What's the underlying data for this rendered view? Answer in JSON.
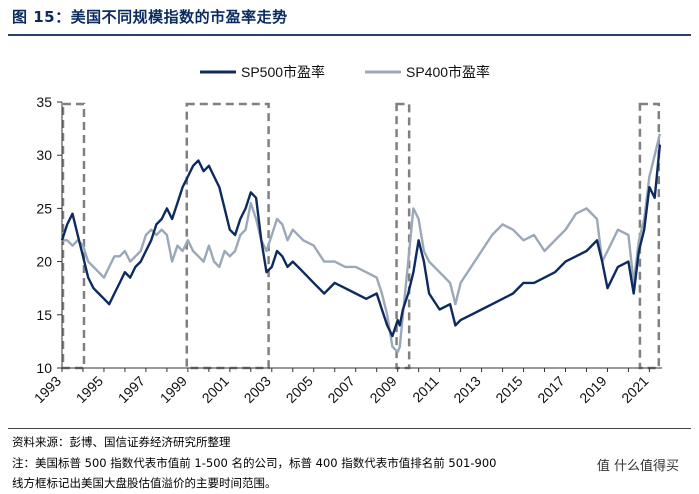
{
  "header": {
    "title": "图 15：美国不同规模指数的市盈率走势"
  },
  "footer": {
    "source": "资料来源：彭博、国信证券经济研究所整理",
    "note1": "注：美国标普 500 指数代表市值前 1-500 名的公司，标普 400 指数代表市值排名前 501-900",
    "note2": "线方框标记出美国大盘股估值溢价的主要时间范围。",
    "watermark": "值 什么值得买"
  },
  "colors": {
    "sp500": "#0d2b5e",
    "sp400": "#9aa8b8",
    "box": "#808080"
  },
  "chart_data": {
    "type": "line",
    "title": "",
    "xlabel": "",
    "ylabel": "",
    "ylim": [
      10,
      35
    ],
    "xlim": [
      1993.0,
      2021.6
    ],
    "yticks": [
      10,
      15,
      20,
      25,
      30,
      35
    ],
    "xticks": [
      "1993",
      "1995",
      "1997",
      "1999",
      "2001",
      "2003",
      "2005",
      "2007",
      "2009",
      "2011",
      "2013",
      "2015",
      "2017",
      "2019",
      "2021"
    ],
    "legend": "top-center",
    "series": [
      {
        "name": "SP500市盈率",
        "x": [
          1993.0,
          1993.25,
          1993.5,
          1993.75,
          1994.0,
          1994.25,
          1994.5,
          1994.75,
          1995.0,
          1995.25,
          1995.5,
          1995.75,
          1996.0,
          1996.25,
          1996.5,
          1996.75,
          1997.0,
          1997.25,
          1997.5,
          1997.75,
          1998.0,
          1998.25,
          1998.5,
          1998.75,
          1999.0,
          1999.25,
          1999.5,
          1999.75,
          2000.0,
          2000.25,
          2000.5,
          2000.75,
          2001.0,
          2001.25,
          2001.5,
          2001.75,
          2002.0,
          2002.25,
          2002.5,
          2002.75,
          2003.0,
          2003.25,
          2003.5,
          2003.75,
          2004.0,
          2004.5,
          2005.0,
          2005.5,
          2006.0,
          2006.5,
          2007.0,
          2007.5,
          2008.0,
          2008.25,
          2008.5,
          2008.75,
          2009.0,
          2009.1,
          2009.25,
          2009.5,
          2009.75,
          2010.0,
          2010.25,
          2010.5,
          2011.0,
          2011.5,
          2011.75,
          2012.0,
          2012.5,
          2013.0,
          2013.5,
          2014.0,
          2014.5,
          2015.0,
          2015.5,
          2016.0,
          2016.5,
          2017.0,
          2017.5,
          2018.0,
          2018.5,
          2018.75,
          2019.0,
          2019.5,
          2020.0,
          2020.25,
          2020.5,
          2020.75,
          2021.0,
          2021.25,
          2021.5
        ],
        "values": [
          22,
          23.5,
          24.5,
          22.5,
          20.5,
          18.5,
          17.5,
          17,
          16.5,
          16,
          17,
          18,
          19,
          18.5,
          19.5,
          20,
          21,
          22,
          23.5,
          24,
          25,
          24,
          25.5,
          27,
          28,
          29,
          29.5,
          28.5,
          29,
          28,
          27,
          25,
          23,
          22.5,
          24,
          25,
          26.5,
          26,
          22,
          19,
          19.5,
          21,
          20.5,
          19.5,
          20,
          19,
          18,
          17,
          18,
          17.5,
          17,
          16.5,
          17,
          15.5,
          14,
          13,
          14.5,
          14,
          15.5,
          17,
          19,
          22,
          20,
          17,
          15.5,
          16,
          14,
          14.5,
          15,
          15.5,
          16,
          16.5,
          17,
          18,
          18,
          18.5,
          19,
          20,
          20.5,
          21,
          22,
          20,
          17.5,
          19.5,
          20,
          17,
          21,
          23,
          27,
          26,
          31
        ]
      },
      {
        "name": "SP400市盈率",
        "x": [
          1993.0,
          1993.25,
          1993.5,
          1993.75,
          1994.0,
          1994.25,
          1994.5,
          1994.75,
          1995.0,
          1995.25,
          1995.5,
          1995.75,
          1996.0,
          1996.25,
          1996.5,
          1996.75,
          1997.0,
          1997.25,
          1997.5,
          1997.75,
          1998.0,
          1998.25,
          1998.5,
          1998.75,
          1999.0,
          1999.25,
          1999.5,
          1999.75,
          2000.0,
          2000.25,
          2000.5,
          2000.75,
          2001.0,
          2001.25,
          2001.5,
          2001.75,
          2002.0,
          2002.25,
          2002.5,
          2002.75,
          2003.0,
          2003.25,
          2003.5,
          2003.75,
          2004.0,
          2004.5,
          2005.0,
          2005.5,
          2006.0,
          2006.5,
          2007.0,
          2007.5,
          2008.0,
          2008.25,
          2008.5,
          2008.75,
          2009.0,
          2009.1,
          2009.25,
          2009.5,
          2009.75,
          2010.0,
          2010.25,
          2010.5,
          2011.0,
          2011.5,
          2011.75,
          2012.0,
          2012.5,
          2013.0,
          2013.5,
          2014.0,
          2014.5,
          2015.0,
          2015.5,
          2016.0,
          2016.5,
          2017.0,
          2017.5,
          2018.0,
          2018.5,
          2018.75,
          2019.0,
          2019.5,
          2020.0,
          2020.25,
          2020.5,
          2020.75,
          2021.0,
          2021.25,
          2021.5
        ],
        "values": [
          22,
          22,
          21.5,
          22,
          21.5,
          20,
          19.5,
          19,
          18.5,
          19.5,
          20.5,
          20.5,
          21,
          20,
          20.5,
          21,
          22.5,
          23,
          22.5,
          23,
          22.5,
          20,
          21.5,
          21,
          22,
          21,
          20.5,
          20,
          21.5,
          20,
          19.5,
          21,
          20.5,
          21,
          22.5,
          23,
          25.5,
          24,
          22,
          21,
          22.5,
          24,
          23.5,
          22,
          23,
          22,
          21.5,
          20,
          20,
          19.5,
          19.5,
          19,
          18.5,
          17,
          15,
          12,
          11.5,
          12,
          15,
          20,
          25,
          24,
          21,
          20,
          19,
          18,
          16,
          18,
          19.5,
          21,
          22.5,
          23.5,
          23,
          22,
          22.5,
          21,
          22,
          23,
          24.5,
          25,
          24,
          20,
          21,
          23,
          22.5,
          18,
          22,
          24,
          28,
          30,
          32
        ]
      }
    ],
    "shaded_periods": [
      [
        1993.0,
        1994.0
      ],
      [
        1998.9,
        2002.8
      ],
      [
        2008.9,
        2009.5
      ],
      [
        2020.5,
        2021.4
      ]
    ]
  }
}
